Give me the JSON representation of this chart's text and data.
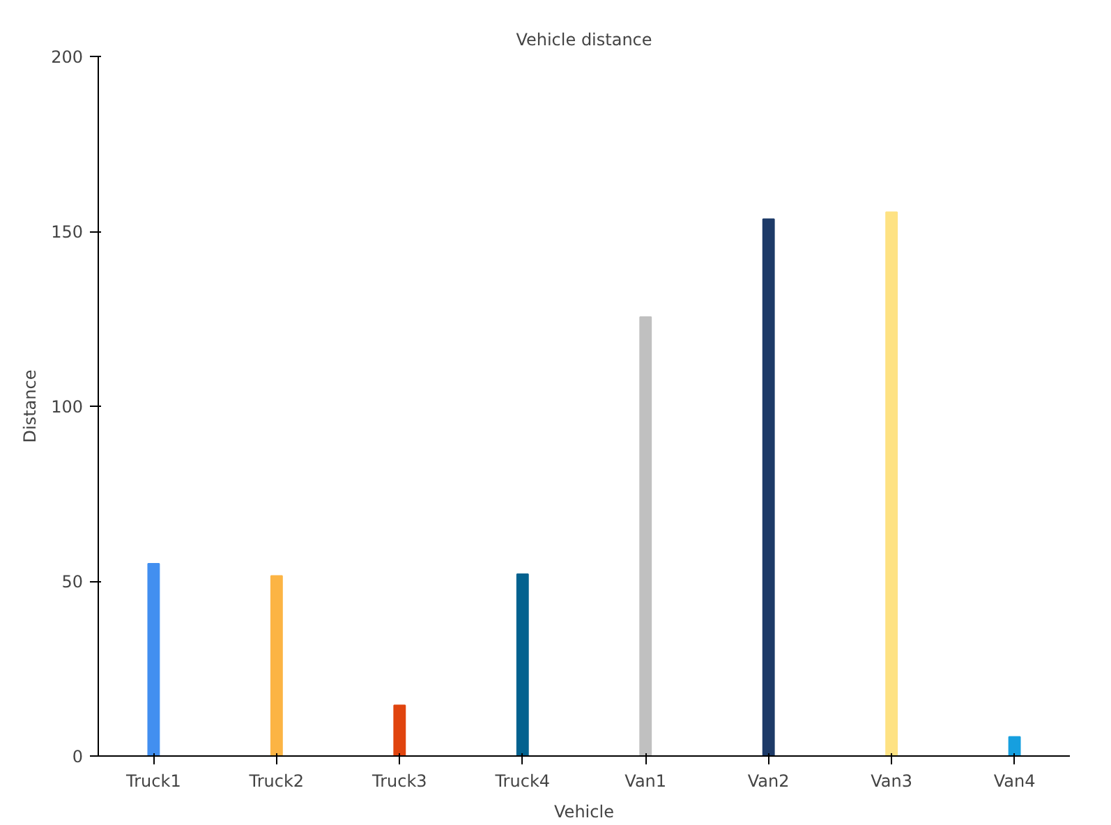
{
  "chart_data": {
    "type": "bar",
    "title": "Vehicle distance",
    "xlabel": "Vehicle",
    "ylabel": "Distance",
    "categories": [
      "Truck1",
      "Truck2",
      "Truck3",
      "Truck4",
      "Van1",
      "Van2",
      "Van3",
      "Van4"
    ],
    "values": [
      55,
      51.5,
      14.5,
      52,
      125.5,
      153.5,
      155.5,
      5.5
    ],
    "colors": [
      "#428ff0",
      "#fcb444",
      "#e0440e",
      "#03628f",
      "#c0c0c0",
      "#1d3a68",
      "#fee283",
      "#169fdf"
    ],
    "ylim": [
      0,
      200
    ],
    "yticks": [
      0,
      50,
      100,
      150,
      200
    ],
    "grid": false
  }
}
